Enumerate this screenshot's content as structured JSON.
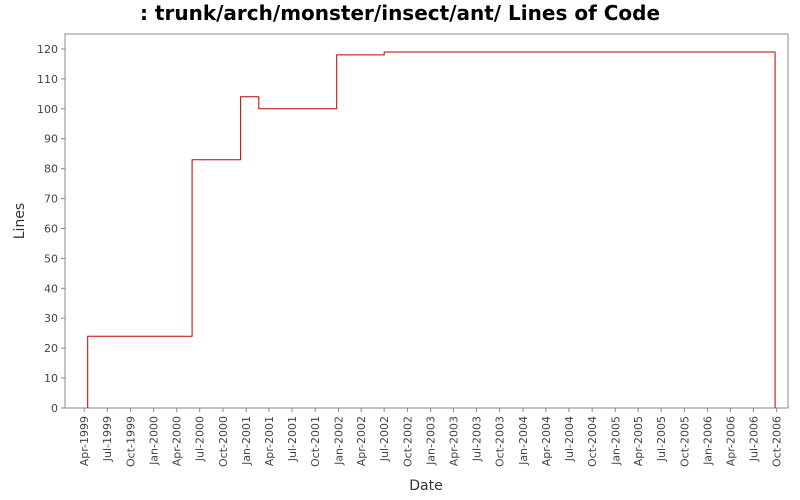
{
  "chart_data": {
    "type": "line",
    "title": ": trunk/arch/monster/insect/ant/ Lines of Code",
    "xlabel": "Date",
    "ylabel": "Lines",
    "x_range": [
      "1999-01-15",
      "2006-11-15"
    ],
    "ylim": [
      0,
      125
    ],
    "y_ticks": [
      0,
      10,
      20,
      30,
      40,
      50,
      60,
      70,
      80,
      90,
      100,
      110,
      120
    ],
    "x_ticks": [
      {
        "date": "1999-04-01",
        "label": "Apr-1999"
      },
      {
        "date": "1999-07-01",
        "label": "Jul-1999"
      },
      {
        "date": "1999-10-01",
        "label": "Oct-1999"
      },
      {
        "date": "2000-01-01",
        "label": "Jan-2000"
      },
      {
        "date": "2000-04-01",
        "label": "Apr-2000"
      },
      {
        "date": "2000-07-01",
        "label": "Jul-2000"
      },
      {
        "date": "2000-10-01",
        "label": "Oct-2000"
      },
      {
        "date": "2001-01-01",
        "label": "Jan-2001"
      },
      {
        "date": "2001-04-01",
        "label": "Apr-2001"
      },
      {
        "date": "2001-07-01",
        "label": "Jul-2001"
      },
      {
        "date": "2001-10-01",
        "label": "Oct-2001"
      },
      {
        "date": "2002-01-01",
        "label": "Jan-2002"
      },
      {
        "date": "2002-04-01",
        "label": "Apr-2002"
      },
      {
        "date": "2002-07-01",
        "label": "Jul-2002"
      },
      {
        "date": "2002-10-01",
        "label": "Oct-2002"
      },
      {
        "date": "2003-01-01",
        "label": "Jan-2003"
      },
      {
        "date": "2003-04-01",
        "label": "Apr-2003"
      },
      {
        "date": "2003-07-01",
        "label": "Jul-2003"
      },
      {
        "date": "2003-10-01",
        "label": "Oct-2003"
      },
      {
        "date": "2004-01-01",
        "label": "Jan-2004"
      },
      {
        "date": "2004-04-01",
        "label": "Apr-2004"
      },
      {
        "date": "2004-07-01",
        "label": "Jul-2004"
      },
      {
        "date": "2004-10-01",
        "label": "Oct-2004"
      },
      {
        "date": "2005-01-01",
        "label": "Jan-2005"
      },
      {
        "date": "2005-04-01",
        "label": "Apr-2005"
      },
      {
        "date": "2005-07-01",
        "label": "Jul-2005"
      },
      {
        "date": "2005-10-01",
        "label": "Oct-2005"
      },
      {
        "date": "2006-01-01",
        "label": "Jan-2006"
      },
      {
        "date": "2006-04-01",
        "label": "Apr-2006"
      },
      {
        "date": "2006-07-01",
        "label": "Jul-2006"
      },
      {
        "date": "2006-10-01",
        "label": "Oct-2006"
      }
    ],
    "step": true,
    "series": [
      {
        "line_color": "#c00000",
        "points": [
          {
            "x": "1999-04-15",
            "y": 0
          },
          {
            "x": "1999-04-15",
            "y": 24
          },
          {
            "x": "2000-06-01",
            "y": 24
          },
          {
            "x": "2000-06-01",
            "y": 83
          },
          {
            "x": "2000-12-10",
            "y": 83
          },
          {
            "x": "2000-12-10",
            "y": 104
          },
          {
            "x": "2001-02-20",
            "y": 104
          },
          {
            "x": "2001-02-20",
            "y": 100
          },
          {
            "x": "2001-12-25",
            "y": 100
          },
          {
            "x": "2001-12-25",
            "y": 118
          },
          {
            "x": "2002-07-01",
            "y": 118
          },
          {
            "x": "2002-07-01",
            "y": 119
          },
          {
            "x": "2006-09-25",
            "y": 119
          },
          {
            "x": "2006-09-25",
            "y": 0
          }
        ]
      }
    ],
    "grid": false,
    "legend": "none",
    "colors": {
      "background": "#ffffff",
      "plot_background": "#ffffff",
      "axis": "#888888",
      "text": "#333333"
    }
  }
}
